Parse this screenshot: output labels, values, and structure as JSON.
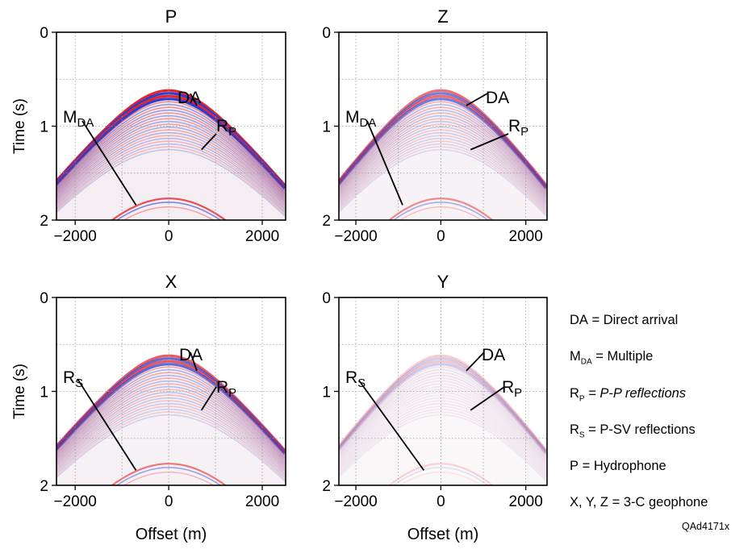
{
  "chart_data": [
    {
      "type": "heatmap",
      "title": "P",
      "xlabel": "",
      "ylabel": "Time (s)",
      "x_ticks": [
        "−2000",
        "0",
        "2000"
      ],
      "y_ticks": [
        "0",
        "1",
        "2"
      ],
      "xlim": [
        -2400,
        2500
      ],
      "ylim": [
        0,
        2
      ],
      "grid": true,
      "amplitude": 1.0,
      "annotations": [
        {
          "label": "DA",
          "text": "DA",
          "sub": "",
          "point": [
            600,
            0.78
          ]
        },
        {
          "label": "RP",
          "text": "R",
          "sub": "P",
          "point": [
            700,
            1.25
          ]
        },
        {
          "label": "MDA",
          "text": "M",
          "sub": "DA",
          "point": [
            -700,
            1.84
          ]
        }
      ]
    },
    {
      "type": "heatmap",
      "title": "Z",
      "xlabel": "",
      "ylabel": "",
      "x_ticks": [
        "−2000",
        "0",
        "2000"
      ],
      "y_ticks": [
        "0",
        "1",
        "2"
      ],
      "xlim": [
        -2400,
        2500
      ],
      "ylim": [
        0,
        2
      ],
      "grid": true,
      "amplitude": 0.65,
      "annotations": [
        {
          "label": "DA",
          "text": "DA",
          "sub": "",
          "point": [
            600,
            0.78
          ]
        },
        {
          "label": "RP",
          "text": "R",
          "sub": "P",
          "point": [
            700,
            1.25
          ]
        },
        {
          "label": "MDA",
          "text": "M",
          "sub": "DA",
          "point": [
            -900,
            1.84
          ]
        }
      ]
    },
    {
      "type": "heatmap",
      "title": "X",
      "xlabel": "Offset (m)",
      "ylabel": "Time (s)",
      "x_ticks": [
        "−2000",
        "0",
        "2000"
      ],
      "y_ticks": [
        "0",
        "1",
        "2"
      ],
      "xlim": [
        -2400,
        2500
      ],
      "ylim": [
        0,
        2
      ],
      "grid": true,
      "amplitude": 0.75,
      "annotations": [
        {
          "label": "DA",
          "text": "DA",
          "sub": "",
          "point": [
            600,
            0.78
          ]
        },
        {
          "label": "RP",
          "text": "R",
          "sub": "P",
          "point": [
            700,
            1.2
          ]
        },
        {
          "label": "RS",
          "text": "R",
          "sub": "S",
          "point": [
            -700,
            1.84
          ]
        }
      ]
    },
    {
      "type": "heatmap",
      "title": "Y",
      "xlabel": "Offset (m)",
      "ylabel": "",
      "x_ticks": [
        "−2000",
        "0",
        "2000"
      ],
      "y_ticks": [
        "0",
        "1",
        "2"
      ],
      "xlim": [
        -2400,
        2500
      ],
      "ylim": [
        0,
        2
      ],
      "grid": true,
      "amplitude": 0.22,
      "annotations": [
        {
          "label": "DA",
          "text": "DA",
          "sub": "",
          "point": [
            600,
            0.78
          ]
        },
        {
          "label": "RP",
          "text": "R",
          "sub": "P",
          "point": [
            700,
            1.2
          ]
        },
        {
          "label": "RS",
          "text": "R",
          "sub": "S",
          "point": [
            -400,
            1.84
          ]
        }
      ]
    }
  ],
  "legend": {
    "items": [
      {
        "main": "DA",
        "sub": "",
        "text": " = Direct arrival"
      },
      {
        "main": "M",
        "sub": "DA",
        "text": " = Multiple"
      },
      {
        "main": "R",
        "sub": "P",
        "text": " = P-P reflections"
      },
      {
        "main": "R",
        "sub": "S",
        "text": " = P-SV reflections"
      },
      {
        "main": "P",
        "sub": "",
        "text": " = Hydrophone"
      },
      {
        "main": "X, Y, Z",
        "sub": "",
        "text": " = 3-C geophone"
      }
    ]
  },
  "figure_id": "QAd4171x",
  "colors": {
    "positive": "#e8242a",
    "negative": "#2a3fd0",
    "grid": "#9a9a9a"
  }
}
